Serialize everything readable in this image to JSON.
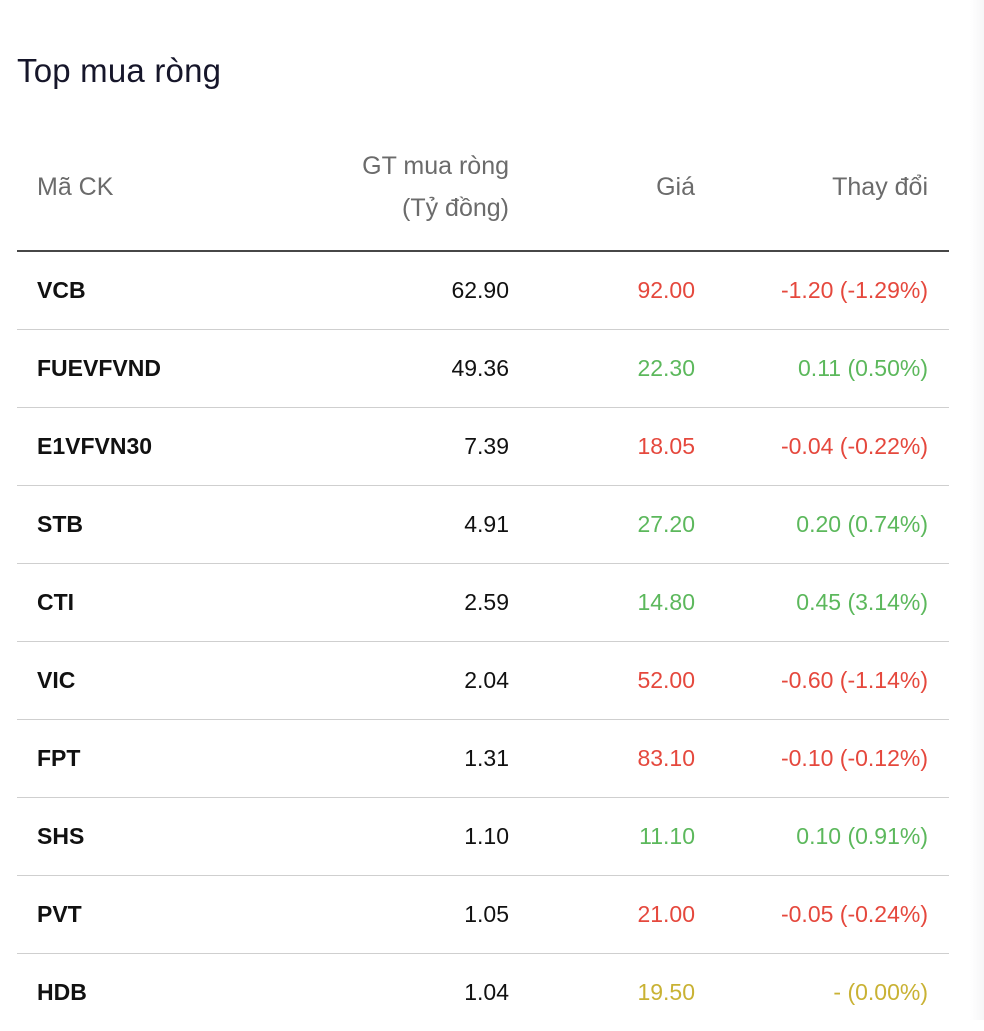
{
  "title": "Top mua ròng",
  "table": {
    "headers": {
      "code": "Mã CK",
      "value_line1": "GT mua ròng",
      "value_line2": "(Tỷ đồng)",
      "price": "Giá",
      "change": "Thay đổi"
    },
    "rows": [
      {
        "code": "VCB",
        "value": "62.90",
        "price": "92.00",
        "change": "-1.20 (-1.29%)",
        "status": "down"
      },
      {
        "code": "FUEVFVND",
        "value": "49.36",
        "price": "22.30",
        "change": "0.11 (0.50%)",
        "status": "up"
      },
      {
        "code": "E1VFVN30",
        "value": "7.39",
        "price": "18.05",
        "change": "-0.04 (-0.22%)",
        "status": "down"
      },
      {
        "code": "STB",
        "value": "4.91",
        "price": "27.20",
        "change": "0.20 (0.74%)",
        "status": "up"
      },
      {
        "code": "CTI",
        "value": "2.59",
        "price": "14.80",
        "change": "0.45 (3.14%)",
        "status": "up"
      },
      {
        "code": "VIC",
        "value": "2.04",
        "price": "52.00",
        "change": "-0.60 (-1.14%)",
        "status": "down"
      },
      {
        "code": "FPT",
        "value": "1.31",
        "price": "83.10",
        "change": "-0.10 (-0.12%)",
        "status": "down"
      },
      {
        "code": "SHS",
        "value": "1.10",
        "price": "11.10",
        "change": "0.10 (0.91%)",
        "status": "up"
      },
      {
        "code": "PVT",
        "value": "1.05",
        "price": "21.00",
        "change": "-0.05 (-0.24%)",
        "status": "down"
      },
      {
        "code": "HDB",
        "value": "1.04",
        "price": "19.50",
        "change": "- (0.00%)",
        "status": "ref"
      }
    ]
  },
  "colors": {
    "down": "#e5483d",
    "up": "#5cb85c",
    "ref": "#c9b234",
    "divider": "#cfcfcf",
    "header_rule": "#474747"
  }
}
